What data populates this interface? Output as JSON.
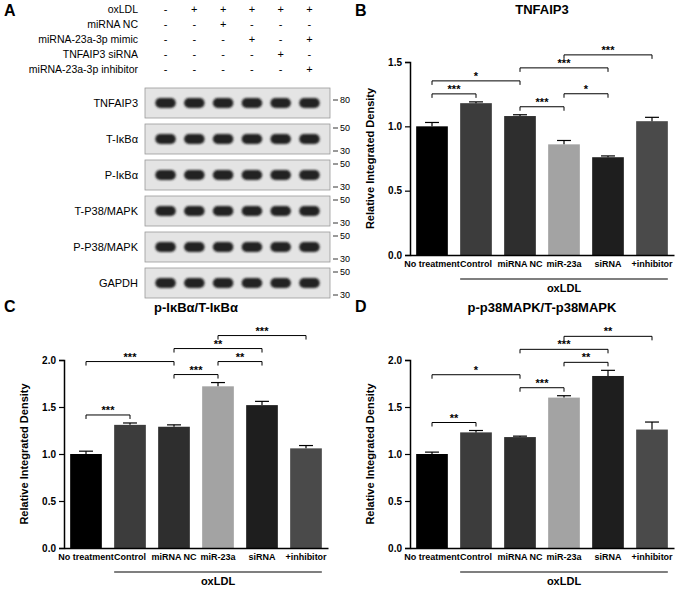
{
  "blot": {
    "panel": "A",
    "treatments": [
      {
        "label": "oxLDL",
        "signs": [
          "-",
          "+",
          "+",
          "+",
          "+",
          "+"
        ]
      },
      {
        "label": "miRNA NC",
        "signs": [
          "-",
          "-",
          "+",
          "-",
          "-",
          "-"
        ]
      },
      {
        "label": "miRNA-23a-3p mimic",
        "signs": [
          "-",
          "-",
          "-",
          "+",
          "-",
          "+"
        ]
      },
      {
        "label": "TNFAIP3 siRNA",
        "signs": [
          "-",
          "-",
          "-",
          "-",
          "+",
          "-"
        ]
      },
      {
        "label": "miRNA-23a-3p inhibitor",
        "signs": [
          "-",
          "-",
          "-",
          "-",
          "-",
          "+"
        ]
      }
    ],
    "bands": [
      {
        "label": "TNFAIP3",
        "markers": [
          80
        ]
      },
      {
        "label": "T-IκBα",
        "markers": [
          50,
          30
        ]
      },
      {
        "label": "P-IκBα",
        "markers": [
          50,
          30
        ]
      },
      {
        "label": "T-P38/MAPK",
        "markers": [
          50,
          30
        ]
      },
      {
        "label": "P-P38/MAPK",
        "markers": [
          50,
          30
        ]
      },
      {
        "label": "GAPDH",
        "markers": [
          50,
          30
        ]
      }
    ]
  },
  "chart_data": [
    {
      "type": "bar",
      "panel": "B",
      "title": "TNFAIP3",
      "y_label": "Relative Integrated Density",
      "categories": [
        "No treatment",
        "Control",
        "miRNA NC",
        "miR-23a",
        "siRNA",
        "+inhibitor"
      ],
      "values": [
        1.0,
        1.18,
        1.08,
        0.86,
        0.76,
        1.04
      ],
      "errors": [
        0.03,
        0.01,
        0.01,
        0.03,
        0.01,
        0.03
      ],
      "colors": [
        "#000000",
        "#3c3c3c",
        "#2e2e2e",
        "#a3a3a3",
        "#1e1e1e",
        "#4a4a4a"
      ],
      "ylim": [
        0,
        1.5
      ],
      "yticks": [
        {
          "value": 0,
          "label": "0.0"
        },
        0.5,
        {
          "value": 1,
          "label": "1.0"
        },
        1.5
      ],
      "group": {
        "label": "oxLDL",
        "from": 1,
        "to": 5
      },
      "comparisons": [
        {
          "from": 0,
          "to": 1,
          "label": "***"
        },
        {
          "from": 0,
          "to": 2,
          "label": "*"
        },
        {
          "from": 2,
          "to": 3,
          "label": "***"
        },
        {
          "from": 2,
          "to": 4,
          "label": "***"
        },
        {
          "from": 3,
          "to": 4,
          "label": "*"
        },
        {
          "from": 3,
          "to": 5,
          "label": "***"
        }
      ]
    },
    {
      "type": "bar",
      "panel": "C",
      "title": "p-IκBα/T-IκBα",
      "y_label": "Relative Integrated Density",
      "categories": [
        "No treatment",
        "Control",
        "miRNA NC",
        "miR-23a",
        "siRNA",
        "+inhibitor"
      ],
      "values": [
        1.0,
        1.31,
        1.29,
        1.72,
        1.52,
        1.06
      ],
      "errors": [
        0.03,
        0.02,
        0.02,
        0.04,
        0.04,
        0.03
      ],
      "colors": [
        "#000000",
        "#3c3c3c",
        "#2e2e2e",
        "#a3a3a3",
        "#1e1e1e",
        "#4a4a4a"
      ],
      "ylim": [
        0,
        2.0
      ],
      "yticks": [
        {
          "value": 0,
          "label": "0.0"
        },
        0.5,
        {
          "value": 1,
          "label": "1.0"
        },
        1.5,
        {
          "value": 2,
          "label": "2.0"
        }
      ],
      "group": {
        "label": "oxLDL",
        "from": 1,
        "to": 5
      },
      "comparisons": [
        {
          "from": 0,
          "to": 1,
          "label": "***"
        },
        {
          "from": 0,
          "to": 2,
          "label": "***"
        },
        {
          "from": 2,
          "to": 3,
          "label": "***"
        },
        {
          "from": 2,
          "to": 4,
          "label": "**"
        },
        {
          "from": 3,
          "to": 4,
          "label": "**"
        },
        {
          "from": 3,
          "to": 5,
          "label": "***"
        }
      ]
    },
    {
      "type": "bar",
      "panel": "D",
      "title": "p-p38MAPK/T-p38MAPK",
      "y_label": "Relative Integrated Density",
      "categories": [
        "No treatment",
        "Control",
        "miRNA NC",
        "miR-23a",
        "siRNA",
        "+inhibitor"
      ],
      "values": [
        1.0,
        1.23,
        1.18,
        1.6,
        1.83,
        1.26
      ],
      "errors": [
        0.02,
        0.02,
        0.01,
        0.02,
        0.06,
        0.08
      ],
      "colors": [
        "#000000",
        "#3c3c3c",
        "#2e2e2e",
        "#a3a3a3",
        "#1e1e1e",
        "#4a4a4a"
      ],
      "ylim": [
        0,
        2.0
      ],
      "yticks": [
        {
          "value": 0,
          "label": "0.0"
        },
        0.5,
        {
          "value": 1,
          "label": "1.0"
        },
        1.5,
        {
          "value": 2,
          "label": "2.0"
        }
      ],
      "group": {
        "label": "oxLDL",
        "from": 1,
        "to": 5
      },
      "comparisons": [
        {
          "from": 0,
          "to": 1,
          "label": "**"
        },
        {
          "from": 0,
          "to": 2,
          "label": "*"
        },
        {
          "from": 2,
          "to": 3,
          "label": "***"
        },
        {
          "from": 2,
          "to": 4,
          "label": "***"
        },
        {
          "from": 3,
          "to": 4,
          "label": "**"
        },
        {
          "from": 3,
          "to": 5,
          "label": "**"
        }
      ]
    }
  ]
}
